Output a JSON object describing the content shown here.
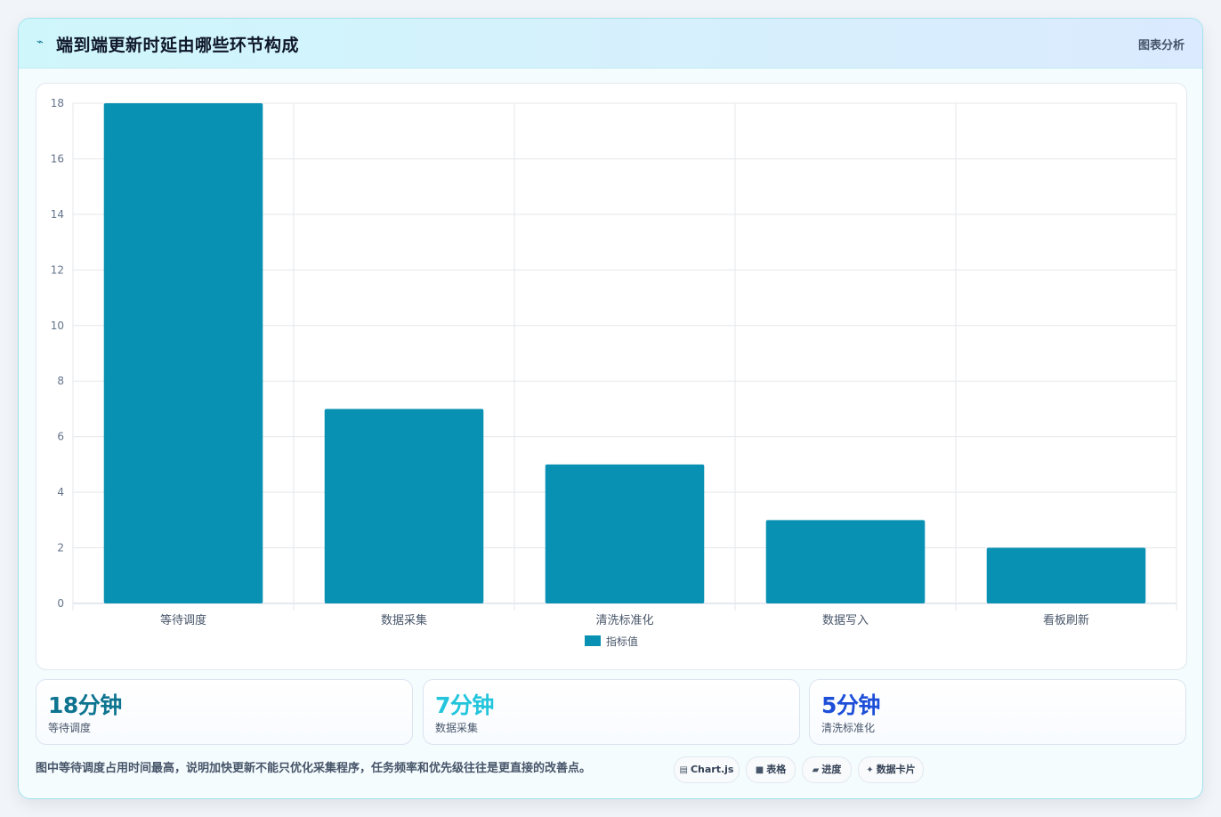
{
  "header": {
    "icon": "lightning-icon",
    "title": "端到端更新时延由哪些环节构成",
    "tag": "图表分析"
  },
  "chart_data": {
    "type": "bar",
    "categories": [
      "等待调度",
      "数据采集",
      "清洗标准化",
      "数据写入",
      "看板刷新"
    ],
    "series": [
      {
        "name": "指标值",
        "values": [
          18,
          7,
          5,
          3,
          2
        ],
        "color": "#0891b2"
      }
    ],
    "ylim": [
      0,
      18
    ],
    "yticks": [
      0,
      2,
      4,
      6,
      8,
      10,
      12,
      14,
      16,
      18
    ],
    "grid": true,
    "legend": "bottom"
  },
  "stats": [
    {
      "value": "18分钟",
      "label": "等待调度",
      "color": "#0e7490"
    },
    {
      "value": "7分钟",
      "label": "数据采集",
      "color": "#22c5dc"
    },
    {
      "value": "5分钟",
      "label": "清洗标准化",
      "color": "#1d4ed8"
    }
  ],
  "footnote": "图中等待调度占用时间最高，说明加快更新不能只优化采集程序，任务频率和优先级往往是更直接的改善点。",
  "pills": [
    {
      "icon": "▤",
      "icon_name": "chart-icon",
      "label": "Chart.js"
    },
    {
      "icon": "■",
      "icon_name": "table-icon",
      "label": "表格"
    },
    {
      "icon": "▰",
      "icon_name": "progress-icon",
      "label": "进度"
    },
    {
      "icon": "✦",
      "icon_name": "sparkle-icon",
      "label": "数据卡片"
    }
  ]
}
